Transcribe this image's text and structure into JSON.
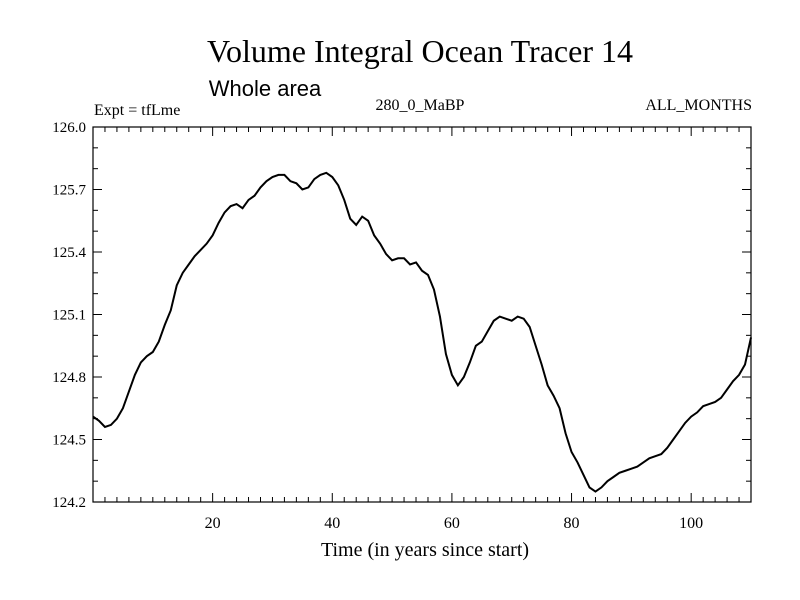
{
  "chart_data": {
    "type": "line",
    "title": "Volume Integral Ocean Tracer 14",
    "subtitle": "Whole area",
    "annotations": {
      "left": "Expt = tfLme",
      "center": "280_0_MaBP",
      "right": "ALL_MONTHS"
    },
    "xlabel": "Time (in years since start)",
    "ylabel": "",
    "xlim": [
      0,
      110
    ],
    "ylim": [
      124.2,
      126.0
    ],
    "xticks": [
      20,
      40,
      60,
      80,
      100
    ],
    "yticks": [
      "124.2",
      "124.5",
      "124.8",
      "125.1",
      "125.4",
      "125.7",
      "126.0"
    ],
    "grid": false,
    "series": [
      {
        "name": "",
        "x": [
          0,
          1,
          2,
          3,
          4,
          5,
          6,
          7,
          8,
          9,
          10,
          11,
          12,
          13,
          14,
          15,
          16,
          17,
          18,
          19,
          20,
          21,
          22,
          23,
          24,
          25,
          26,
          27,
          28,
          29,
          30,
          31,
          32,
          33,
          34,
          35,
          36,
          37,
          38,
          39,
          40,
          41,
          42,
          43,
          44,
          45,
          46,
          47,
          48,
          49,
          50,
          51,
          52,
          53,
          54,
          55,
          56,
          57,
          58,
          59,
          60,
          61,
          62,
          63,
          64,
          65,
          66,
          67,
          68,
          69,
          70,
          71,
          72,
          73,
          74,
          75,
          76,
          77,
          78,
          79,
          80,
          81,
          82,
          83,
          84,
          85,
          86,
          87,
          88,
          89,
          90,
          91,
          92,
          93,
          94,
          95,
          96,
          97,
          98,
          99,
          100,
          101,
          102,
          103,
          104,
          105,
          106,
          107,
          108,
          109,
          110
        ],
        "values": [
          124.61,
          124.59,
          124.56,
          124.57,
          124.6,
          124.65,
          124.73,
          124.81,
          124.87,
          124.9,
          124.92,
          124.97,
          125.05,
          125.12,
          125.24,
          125.3,
          125.34,
          125.38,
          125.41,
          125.44,
          125.48,
          125.54,
          125.59,
          125.62,
          125.63,
          125.61,
          125.65,
          125.67,
          125.71,
          125.74,
          125.76,
          125.77,
          125.77,
          125.74,
          125.73,
          125.7,
          125.71,
          125.75,
          125.77,
          125.78,
          125.76,
          125.72,
          125.65,
          125.56,
          125.53,
          125.57,
          125.55,
          125.48,
          125.44,
          125.39,
          125.36,
          125.37,
          125.37,
          125.34,
          125.35,
          125.31,
          125.29,
          125.22,
          125.09,
          124.91,
          124.81,
          124.76,
          124.8,
          124.87,
          124.95,
          124.97,
          125.02,
          125.07,
          125.09,
          125.08,
          125.07,
          125.09,
          125.08,
          125.04,
          124.95,
          124.86,
          124.76,
          124.71,
          124.65,
          124.53,
          124.44,
          124.39,
          124.33,
          124.27,
          124.25,
          124.27,
          124.3,
          124.32,
          124.34,
          124.35,
          124.36,
          124.37,
          124.39,
          124.41,
          124.42,
          124.43,
          124.46,
          124.5,
          124.54,
          124.58,
          124.61,
          124.63,
          124.66,
          124.67,
          124.68,
          124.7,
          124.74,
          124.78,
          124.81,
          124.86,
          124.99
        ]
      }
    ]
  }
}
